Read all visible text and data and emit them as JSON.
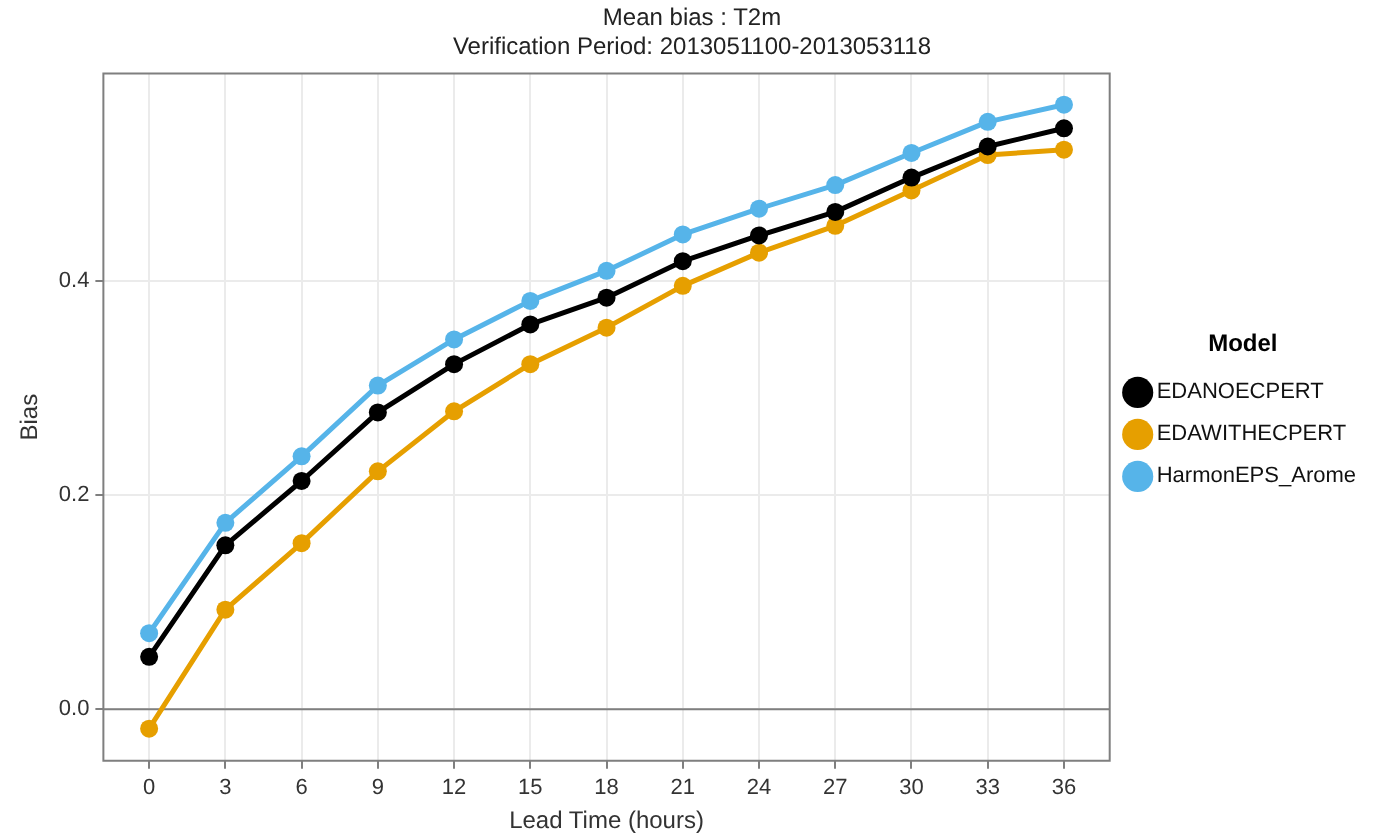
{
  "chart_data": {
    "type": "line",
    "title": "Mean bias : T2m",
    "subtitle": "Verification Period: 2013051100-2013053118",
    "xlabel": "Lead Time (hours)",
    "ylabel": "Bias",
    "legend_title": "Model",
    "legend": "right",
    "grid": true,
    "marker": "circle",
    "line_style": "solid",
    "x": [
      0,
      3,
      6,
      9,
      12,
      15,
      18,
      21,
      24,
      27,
      30,
      33,
      36
    ],
    "xlim": [
      -1.8,
      37.8
    ],
    "xticks": [
      0,
      3,
      6,
      9,
      12,
      15,
      18,
      21,
      24,
      27,
      30,
      33,
      36
    ],
    "ylim": [
      -0.048,
      0.593
    ],
    "yticks": [
      {
        "value": 0,
        "label": "0.0"
      },
      {
        "value": 0.2,
        "label": "0.2"
      },
      {
        "value": 0.4,
        "label": "0.4"
      }
    ],
    "ref_lines": [
      {
        "axis": "y",
        "value": 0,
        "label": null,
        "color": "#7f7f7f"
      }
    ],
    "series": [
      {
        "name": "EDANOECPERT",
        "color": "#000000",
        "values": [
          0.049,
          0.153,
          0.213,
          0.277,
          0.322,
          0.359,
          0.384,
          0.418,
          0.442,
          0.464,
          0.496,
          0.525,
          0.542
        ]
      },
      {
        "name": "EDAWITHECPERT",
        "color": "#e69f00",
        "values": [
          -0.018,
          0.093,
          0.155,
          0.222,
          0.278,
          0.322,
          0.356,
          0.395,
          0.426,
          0.451,
          0.484,
          0.517,
          0.522
        ]
      },
      {
        "name": "HarmonEPS_Arome",
        "color": "#56b4e9",
        "values": [
          0.071,
          0.174,
          0.236,
          0.302,
          0.345,
          0.381,
          0.409,
          0.443,
          0.467,
          0.489,
          0.519,
          0.548,
          0.564
        ]
      }
    ]
  }
}
